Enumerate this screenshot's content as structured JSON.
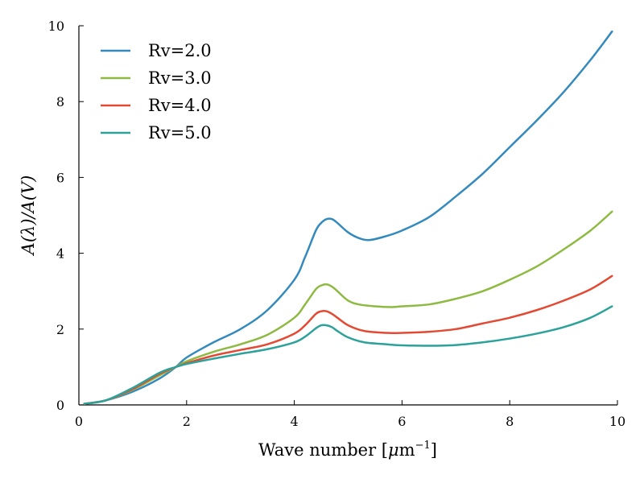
{
  "chart_data": {
    "type": "line",
    "title": "",
    "xlabel_main": "Wave number [",
    "xlabel_mu": "μ",
    "xlabel_unit": "m",
    "xlabel_exp": "−1",
    "xlabel_close": "]",
    "ylabel": "A(λ)/A(V)",
    "xlim": [
      0,
      10
    ],
    "ylim": [
      0,
      10
    ],
    "xticks": [
      "0",
      "2",
      "4",
      "6",
      "8",
      "10"
    ],
    "yticks": [
      "0",
      "2",
      "4",
      "6",
      "8",
      "10"
    ],
    "grid": false,
    "legend_position": "top-left",
    "series": [
      {
        "name": "Rv=2.0",
        "color": "#348ABD",
        "x": [
          0.1,
          0.5,
          1.0,
          1.5,
          1.8,
          2.0,
          2.5,
          3.0,
          3.5,
          4.0,
          4.2,
          4.4,
          4.5,
          4.6,
          4.7,
          4.8,
          5.0,
          5.2,
          5.4,
          5.7,
          6.0,
          6.5,
          7.0,
          7.5,
          8.0,
          8.5,
          9.0,
          9.5,
          9.9
        ],
        "y": [
          0.03,
          0.12,
          0.35,
          0.7,
          1.0,
          1.25,
          1.65,
          2.0,
          2.5,
          3.3,
          3.9,
          4.6,
          4.8,
          4.9,
          4.9,
          4.8,
          4.55,
          4.4,
          4.35,
          4.45,
          4.6,
          4.95,
          5.5,
          6.1,
          6.8,
          7.5,
          8.25,
          9.1,
          9.85
        ]
      },
      {
        "name": "Rv=3.0",
        "color": "#8EBA42",
        "x": [
          0.1,
          0.5,
          1.0,
          1.5,
          1.8,
          2.0,
          2.5,
          3.0,
          3.5,
          4.0,
          4.2,
          4.4,
          4.5,
          4.6,
          4.7,
          4.8,
          5.0,
          5.2,
          5.5,
          5.8,
          6.0,
          6.5,
          7.0,
          7.5,
          8.0,
          8.5,
          9.0,
          9.5,
          9.9
        ],
        "y": [
          0.03,
          0.12,
          0.4,
          0.78,
          1.0,
          1.15,
          1.4,
          1.6,
          1.85,
          2.3,
          2.65,
          3.05,
          3.15,
          3.18,
          3.12,
          3.0,
          2.75,
          2.65,
          2.6,
          2.58,
          2.6,
          2.65,
          2.8,
          3.0,
          3.3,
          3.65,
          4.1,
          4.6,
          5.1
        ]
      },
      {
        "name": "Rv=4.0",
        "color": "#E24A33",
        "x": [
          0.1,
          0.5,
          1.0,
          1.5,
          1.8,
          2.0,
          2.5,
          3.0,
          3.5,
          4.0,
          4.2,
          4.4,
          4.5,
          4.6,
          4.7,
          4.8,
          5.0,
          5.3,
          5.7,
          6.0,
          6.5,
          7.0,
          7.5,
          8.0,
          8.5,
          9.0,
          9.5,
          9.9
        ],
        "y": [
          0.03,
          0.12,
          0.42,
          0.82,
          1.0,
          1.1,
          1.3,
          1.45,
          1.6,
          1.88,
          2.1,
          2.4,
          2.47,
          2.47,
          2.4,
          2.3,
          2.1,
          1.95,
          1.9,
          1.9,
          1.93,
          2.0,
          2.15,
          2.3,
          2.5,
          2.75,
          3.05,
          3.4
        ]
      },
      {
        "name": "Rv=5.0",
        "color": "#2CA29A",
        "x": [
          0.1,
          0.5,
          1.0,
          1.5,
          1.8,
          2.0,
          2.5,
          3.0,
          3.5,
          4.0,
          4.2,
          4.4,
          4.5,
          4.6,
          4.7,
          4.8,
          5.0,
          5.3,
          5.7,
          6.0,
          6.5,
          7.0,
          7.5,
          8.0,
          8.5,
          9.0,
          9.5,
          9.9
        ],
        "y": [
          0.03,
          0.12,
          0.45,
          0.85,
          1.0,
          1.08,
          1.22,
          1.35,
          1.47,
          1.65,
          1.8,
          2.02,
          2.1,
          2.1,
          2.05,
          1.95,
          1.78,
          1.65,
          1.6,
          1.57,
          1.56,
          1.58,
          1.65,
          1.75,
          1.88,
          2.05,
          2.3,
          2.6
        ]
      }
    ]
  }
}
